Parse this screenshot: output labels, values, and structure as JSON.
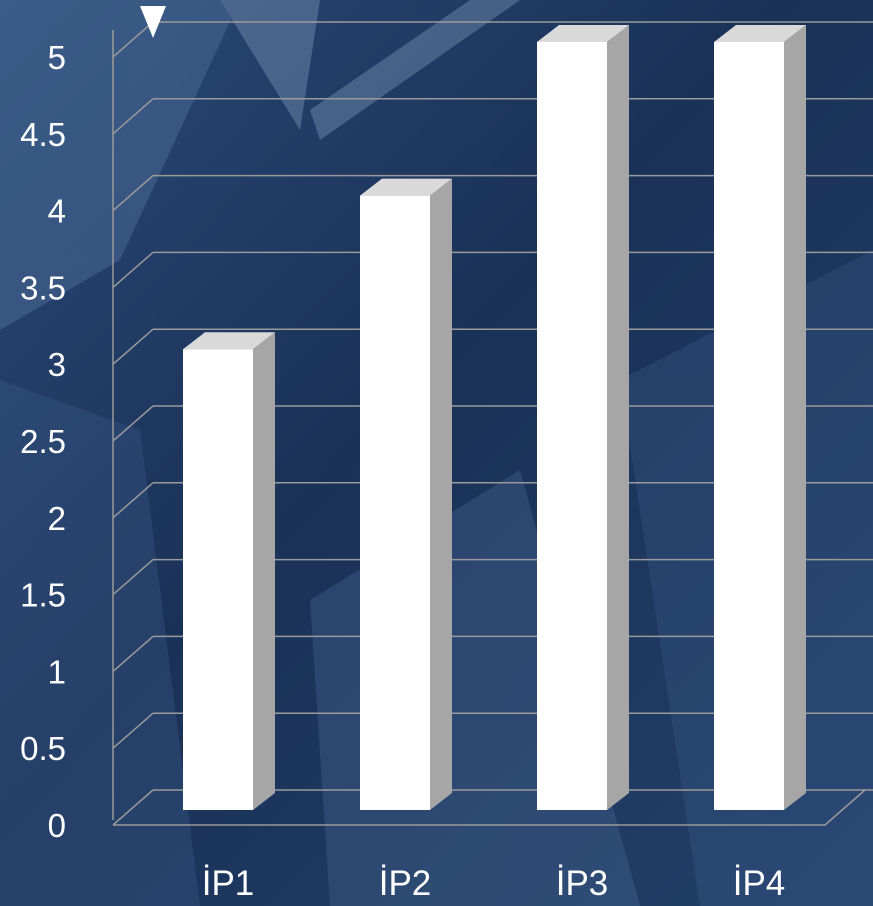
{
  "chart_data": {
    "type": "bar",
    "categories": [
      "İP1",
      "İP2",
      "İP3",
      "İP4"
    ],
    "values": [
      3,
      4,
      5,
      5
    ],
    "ylim": [
      0,
      5
    ],
    "yticks": [
      0,
      0.5,
      1,
      1.5,
      2,
      2.5,
      3,
      3.5,
      4,
      4.5,
      5
    ],
    "ytick_labels": [
      "0",
      "0.5",
      "1",
      "1.5",
      "2",
      "2.5",
      "3",
      "3.5",
      "4",
      "4.5",
      "5"
    ],
    "grid": true,
    "style": "3d-column",
    "colors": {
      "background": "#1b3358",
      "bar_front": "#ffffff",
      "bar_side": "#a6a6a6",
      "bar_top": "#d9d9d9",
      "grid": "#9a9a9a",
      "text": "#ffffff"
    }
  }
}
